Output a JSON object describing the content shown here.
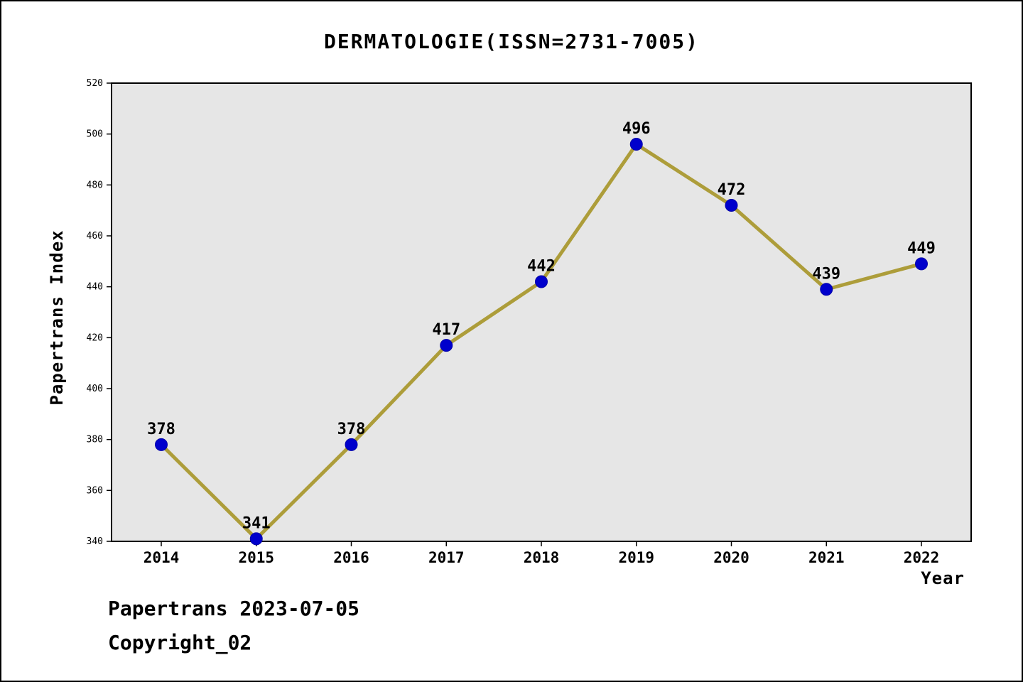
{
  "chart_data": {
    "type": "line",
    "title": "DERMATOLOGIE(ISSN=2731-7005)",
    "xlabel": "Year",
    "ylabel": "Papertrans Index",
    "categories": [
      "2014",
      "2015",
      "2016",
      "2017",
      "2018",
      "2019",
      "2020",
      "2021",
      "2022"
    ],
    "values": [
      378,
      341,
      378,
      417,
      442,
      496,
      472,
      439,
      449
    ],
    "ylim": [
      340,
      520
    ],
    "ytick_step": 20,
    "yticks": [
      340,
      360,
      380,
      400,
      420,
      440,
      460,
      480,
      500,
      520
    ],
    "grid": false,
    "legend": "none",
    "line_color": "#ad9d3a",
    "marker_color": "#0000cc",
    "marker_edge_color": "#0000aa",
    "plot_bg": "#e6e6e6",
    "axis_color": "#000000"
  },
  "footer": {
    "line1": "Papertrans 2023-07-05",
    "line2": "Copyright_02"
  }
}
